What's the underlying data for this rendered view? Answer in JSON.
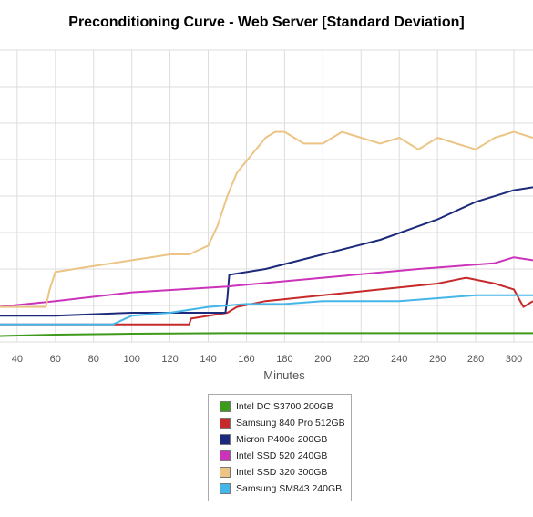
{
  "chart_data": {
    "type": "line",
    "title": "Preconditioning Curve - Web Server [Standard Deviation]",
    "xlabel": "Minutes",
    "ylabel": "",
    "xlim": [
      31,
      310
    ],
    "ylim": [
      0,
      100
    ],
    "x_ticks": [
      40,
      60,
      80,
      100,
      120,
      140,
      160,
      180,
      200,
      220,
      240,
      260,
      280,
      300
    ],
    "grid": true,
    "legend_position": "bottom-center",
    "series": [
      {
        "name": "Intel DC S3700 200GB",
        "color": "#3d9a1b",
        "x": [
          30,
          60,
          100,
          150,
          200,
          250,
          310
        ],
        "y": [
          2,
          2.5,
          2.8,
          3,
          3,
          3,
          3
        ]
      },
      {
        "name": "Samsung 840 Pro 512GB",
        "color": "#c62a2a",
        "x": [
          30,
          60,
          90,
          100,
          130,
          131,
          150,
          155,
          170,
          200,
          230,
          260,
          275,
          290,
          300,
          305,
          310
        ],
        "y": [
          6,
          6,
          6,
          6,
          6,
          8,
          10,
          12,
          14,
          16,
          18,
          20,
          22,
          20,
          18,
          12,
          14
        ]
      },
      {
        "name": "Micron P400e 200GB",
        "color": "#1b2a7a",
        "x": [
          30,
          60,
          100,
          149,
          150,
          151,
          170,
          200,
          230,
          260,
          280,
          300,
          310
        ],
        "y": [
          9,
          9,
          10,
          10,
          15,
          23,
          25,
          30,
          35,
          42,
          48,
          52,
          53
        ]
      },
      {
        "name": "Intel SSD 520 240GB",
        "color": "#cc33bb",
        "x": [
          30,
          60,
          100,
          150,
          200,
          250,
          290,
          300,
          310
        ],
        "y": [
          12,
          14,
          17,
          19,
          22,
          25,
          27,
          29,
          28
        ]
      },
      {
        "name": "Intel SSD 320 300GB",
        "color": "#ecc485",
        "x": [
          30,
          55,
          57,
          60,
          70,
          80,
          90,
          100,
          110,
          120,
          130,
          140,
          145,
          150,
          155,
          160,
          165,
          170,
          175,
          180,
          190,
          200,
          210,
          220,
          230,
          240,
          250,
          260,
          270,
          280,
          290,
          300,
          310
        ],
        "y": [
          12,
          12,
          18,
          24,
          25,
          26,
          27,
          28,
          29,
          30,
          30,
          33,
          40,
          50,
          58,
          62,
          66,
          70,
          72,
          72,
          68,
          68,
          72,
          70,
          68,
          70,
          66,
          70,
          68,
          66,
          70,
          72,
          70
        ]
      },
      {
        "name": "Samsung SM843 240GB",
        "color": "#45b6e8",
        "x": [
          30,
          60,
          90,
          100,
          120,
          140,
          160,
          180,
          200,
          220,
          240,
          260,
          280,
          300,
          310
        ],
        "y": [
          6,
          6,
          6,
          9,
          10,
          12,
          13,
          13,
          14,
          14,
          14,
          15,
          16,
          16,
          16
        ]
      }
    ]
  }
}
